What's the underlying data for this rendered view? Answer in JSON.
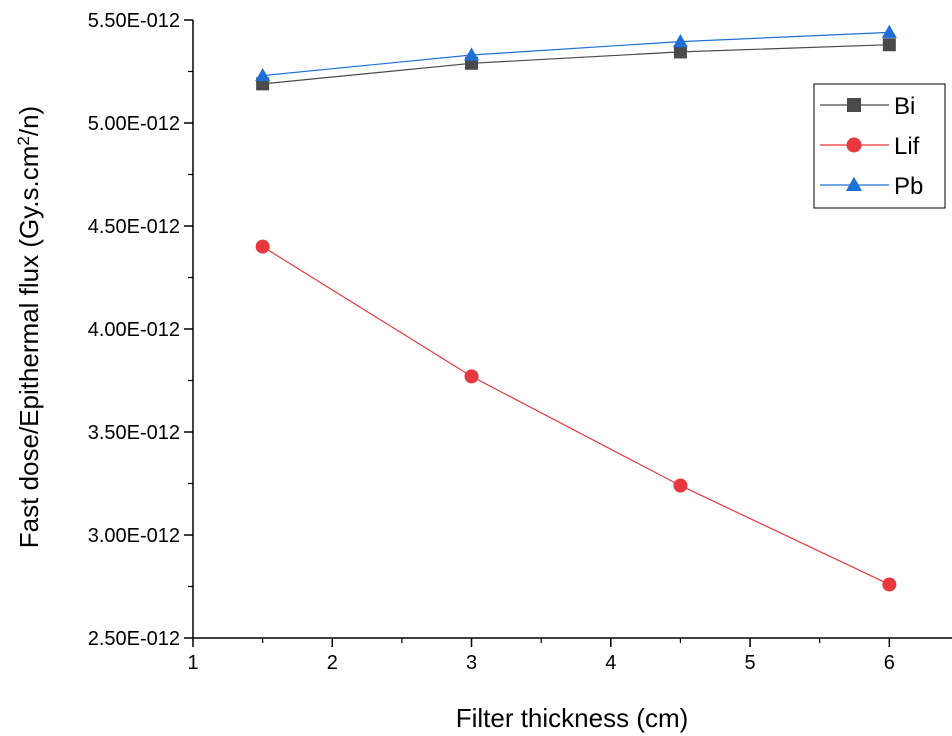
{
  "chart_data": {
    "type": "line",
    "title": "",
    "xlabel": "Filter thickness (cm)",
    "ylabel_main": "Fast dose/Epithermal flux (Gy.s.cm",
    "ylabel_sup": "2",
    "ylabel_tail": "/n)",
    "xlim": [
      1,
      6.45
    ],
    "ylim": [
      2.5e-12,
      5.5e-12
    ],
    "x_ticks": [
      1,
      2,
      3,
      4,
      5,
      6
    ],
    "x_tick_labels": [
      "1",
      "2",
      "3",
      "4",
      "5",
      "6"
    ],
    "y_ticks": [
      2.5e-12,
      3e-12,
      3.5e-12,
      4e-12,
      4.5e-12,
      5e-12,
      5.5e-12
    ],
    "y_tick_labels": [
      "2.50E-012",
      "3.00E-012",
      "3.50E-012",
      "4.00E-012",
      "4.50E-012",
      "5.00E-012",
      "5.50E-012"
    ],
    "legend_position": "top-right",
    "grid": false,
    "x": [
      1.5,
      3,
      4.5,
      6
    ],
    "series": [
      {
        "name": "Bi",
        "values": [
          5.19e-12,
          5.29e-12,
          5.345e-12,
          5.38e-12
        ],
        "color": "#4a4a4a",
        "marker": "square"
      },
      {
        "name": "Lif",
        "values": [
          4.4e-12,
          3.77e-12,
          3.24e-12,
          2.76e-12
        ],
        "color": "#e8383d",
        "marker": "circle"
      },
      {
        "name": "Pb",
        "values": [
          5.23e-12,
          5.33e-12,
          5.395e-12,
          5.44e-12
        ],
        "color": "#1f6fd6",
        "marker": "triangle"
      }
    ]
  }
}
